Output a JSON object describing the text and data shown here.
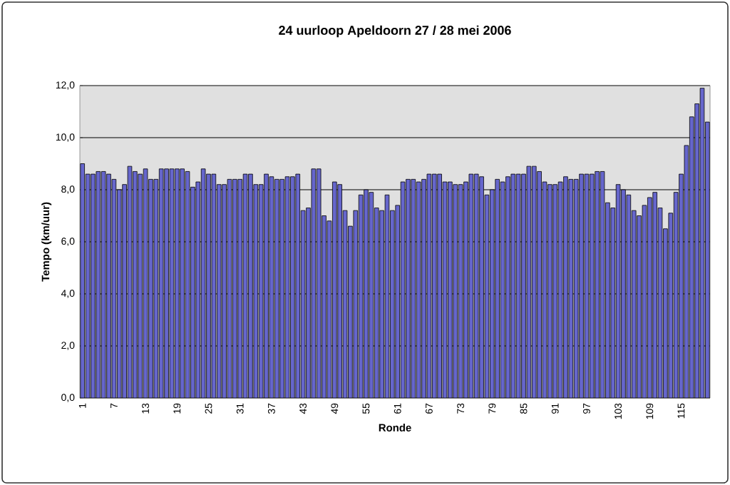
{
  "chart_data": {
    "type": "bar",
    "title": "24 uurloop Apeldoorn 27 / 28 mei 2006",
    "xlabel": "Ronde",
    "ylabel": "Tempo (km/uur)",
    "categories": [
      "1",
      null,
      null,
      null,
      null,
      null,
      "7",
      null,
      null,
      null,
      null,
      null,
      "13",
      null,
      null,
      null,
      null,
      null,
      "19",
      null,
      null,
      null,
      null,
      null,
      "25",
      null,
      null,
      null,
      null,
      null,
      "31",
      null,
      null,
      null,
      null,
      null,
      "37",
      null,
      null,
      null,
      null,
      null,
      "43",
      null,
      null,
      null,
      null,
      null,
      "49",
      null,
      null,
      null,
      null,
      null,
      "55",
      null,
      null,
      null,
      null,
      null,
      "61",
      null,
      null,
      null,
      null,
      null,
      "67",
      null,
      null,
      null,
      null,
      null,
      "73",
      null,
      null,
      null,
      null,
      null,
      "79",
      null,
      null,
      null,
      null,
      null,
      "85",
      null,
      null,
      null,
      null,
      null,
      "91",
      null,
      null,
      null,
      null,
      null,
      "97",
      null,
      null,
      null,
      null,
      null,
      "103",
      null,
      null,
      null,
      null,
      null,
      "109",
      null,
      null,
      null,
      null,
      null,
      "115",
      null,
      null,
      null,
      null,
      null
    ],
    "values": [
      9.0,
      8.6,
      8.6,
      8.7,
      8.7,
      8.6,
      8.4,
      8.0,
      8.2,
      8.9,
      8.7,
      8.6,
      8.8,
      8.4,
      8.4,
      8.8,
      8.8,
      8.8,
      8.8,
      8.8,
      8.7,
      8.1,
      8.3,
      8.8,
      8.6,
      8.6,
      8.2,
      8.2,
      8.4,
      8.4,
      8.4,
      8.6,
      8.6,
      8.2,
      8.2,
      8.6,
      8.5,
      8.4,
      8.4,
      8.5,
      8.5,
      8.6,
      7.2,
      7.3,
      8.8,
      8.8,
      7.0,
      6.8,
      8.3,
      8.2,
      7.2,
      6.6,
      7.2,
      7.8,
      8.0,
      7.9,
      7.3,
      7.2,
      7.8,
      7.2,
      7.4,
      8.3,
      8.4,
      8.4,
      8.3,
      8.4,
      8.6,
      8.6,
      8.6,
      8.3,
      8.3,
      8.2,
      8.2,
      8.3,
      8.6,
      8.6,
      8.5,
      7.8,
      8.0,
      8.4,
      8.3,
      8.5,
      8.6,
      8.6,
      8.6,
      8.9,
      8.9,
      8.7,
      8.3,
      8.2,
      8.2,
      8.3,
      8.5,
      8.4,
      8.4,
      8.6,
      8.6,
      8.6,
      8.7,
      8.7,
      7.5,
      7.3,
      8.2,
      8.0,
      7.8,
      7.2,
      7.0,
      7.4,
      7.7,
      7.9,
      7.3,
      6.5,
      7.1,
      7.9,
      8.6,
      9.7,
      10.8,
      11.3,
      11.9,
      10.6
    ],
    "color": "#6666cc",
    "ylim": [
      0,
      12
    ],
    "yticks": [
      {
        "value": 0,
        "label": "0,0"
      },
      {
        "value": 2,
        "label": "2,0"
      },
      {
        "value": 4,
        "label": "4,0"
      },
      {
        "value": 6,
        "label": "6,0"
      },
      {
        "value": 8,
        "label": "8,0"
      },
      {
        "value": 10,
        "label": "10,0"
      },
      {
        "value": 12,
        "label": "12,0"
      }
    ],
    "grid": "y"
  }
}
